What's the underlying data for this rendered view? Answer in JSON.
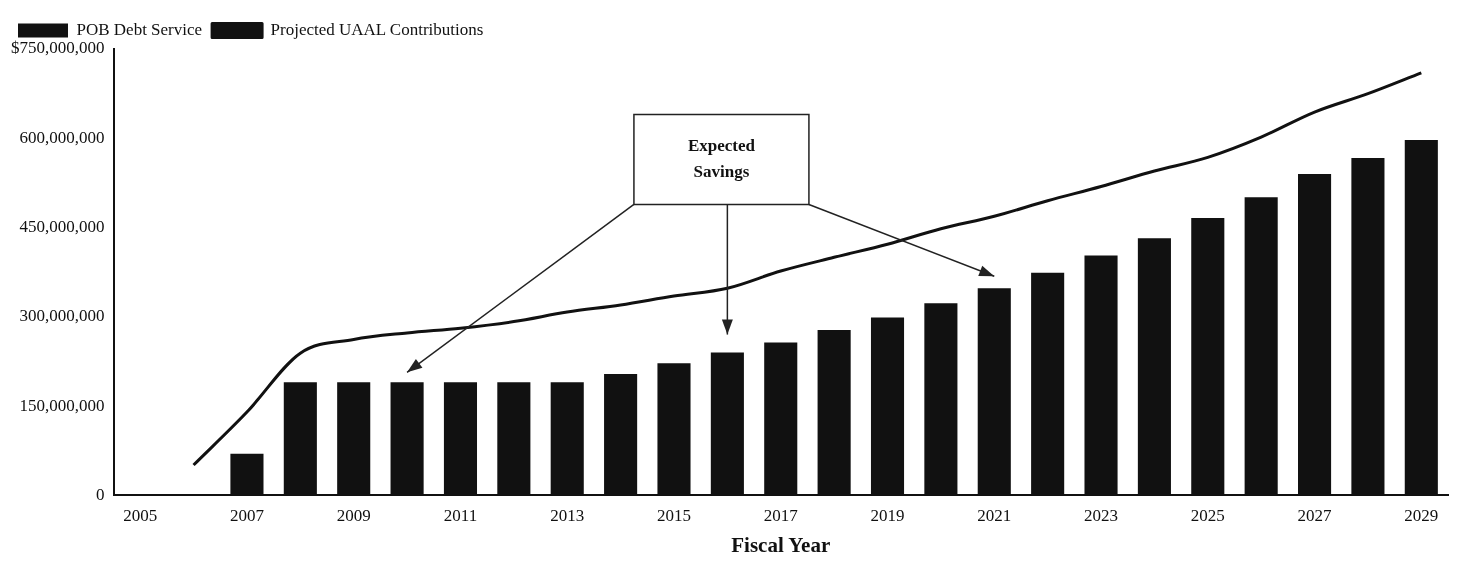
{
  "chart_data": {
    "type": "bar",
    "xlabel": "Fiscal Year",
    "categories": [
      "2005",
      null,
      "2007",
      null,
      "2009",
      null,
      "2011",
      null,
      "2013",
      null,
      "2015",
      null,
      "2017",
      null,
      "2019",
      null,
      "2021",
      null,
      "2023",
      null,
      "2025",
      null,
      "2027",
      null,
      "2029"
    ],
    "series": [
      {
        "name": "POB Debt Service",
        "color": "#111111",
        "values": [
          null,
          null,
          70000000,
          190000000,
          190000000,
          190000000,
          190000000,
          190000000,
          190000000,
          204000000,
          222000000,
          240000000,
          257000000,
          278000000,
          299000000,
          323000000,
          348000000,
          374000000,
          403000000,
          432000000,
          466000000,
          501000000,
          540000000,
          567000000,
          597000000
        ]
      },
      {
        "name": "Projected UAAL Contributions",
        "type": "line",
        "color": "#111111",
        "values": [
          null,
          51000000,
          140000000,
          239000000,
          262000000,
          273000000,
          281000000,
          292000000,
          308000000,
          320000000,
          335000000,
          348000000,
          377000000,
          400000000,
          422000000,
          448000000,
          469000000,
          495000000,
          519000000,
          545000000,
          568000000,
          602000000,
          644000000,
          675000000,
          710000000
        ]
      }
    ],
    "ylim": [
      0,
      750000000
    ],
    "yticks": [
      0,
      {
        "value": 150000000,
        "label": "150,000,000"
      },
      {
        "value": 300000000,
        "label": "300,000,000"
      },
      {
        "value": 450000000,
        "label": "450,000,000"
      },
      {
        "value": 600000000,
        "label": "600,000,000"
      },
      {
        "value": 750000000,
        "label": "$750,000,000"
      }
    ],
    "legend": "top left",
    "grid": false,
    "marker": "none",
    "line_style": "solid",
    "annotations": [
      "Expected Savings"
    ]
  }
}
